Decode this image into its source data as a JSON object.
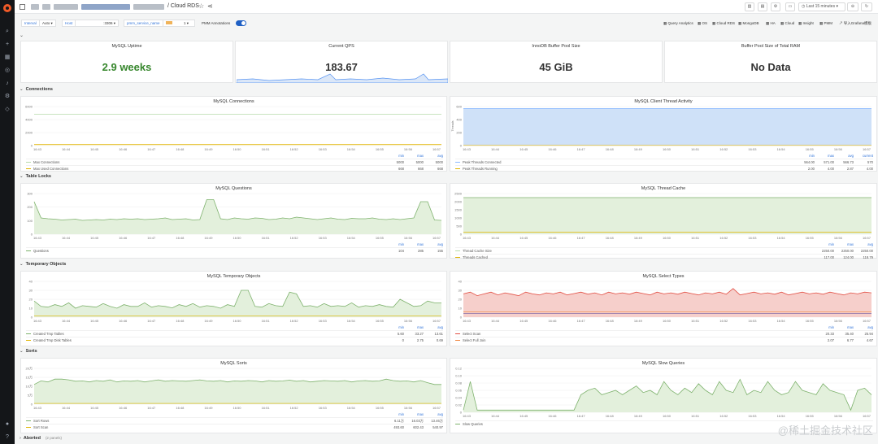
{
  "topbar": {
    "title": "/ Cloud RDS",
    "buttons": [
      "Last 15 minutes"
    ]
  },
  "variables": [
    {
      "label": "Interval",
      "value": "Auto"
    },
    {
      "label": "Host",
      "value": ":3306"
    },
    {
      "label": "pmm_service_name",
      "value": ""
    },
    {
      "label": "PMM Annotations",
      "value": ""
    }
  ],
  "navlinks": [
    "Query Analytics",
    "OS",
    "Cloud RDS",
    "MongoDB",
    "HA",
    "Cloud",
    "Insight",
    "PMM",
    "导入Grafana模板"
  ],
  "stats": [
    {
      "title": "MySQL Uptime",
      "value": "2.9 weeks",
      "color": "#37872d"
    },
    {
      "title": "Current QPS",
      "value": "183.67",
      "color": "#333333"
    },
    {
      "title": "InnoDB Buffer Pool Size",
      "value": "45 GiB",
      "color": "#333333"
    },
    {
      "title": "Buffer Pool Size of Total RAM",
      "value": "No Data",
      "color": "#333333"
    }
  ],
  "rows": [
    "Connections",
    "Table Locks",
    "Temporary Objects",
    "Sorts",
    "Aborted"
  ],
  "aborted_sub": "(2 panels)",
  "time_ticks": [
    "16:43",
    "16:44",
    "16:45",
    "16:46",
    "16:47",
    "16:48",
    "16:49",
    "16:50",
    "16:51",
    "16:52",
    "16:53",
    "16:54",
    "16:55",
    "16:56",
    "16:57"
  ],
  "legend_headers": [
    "min",
    "max",
    "avg"
  ],
  "legend_headers_current": [
    "min",
    "max",
    "avg",
    "current"
  ],
  "panels": {
    "connections": {
      "title": "MySQL Connections",
      "yticks": [
        "6000",
        "4000",
        "2000",
        "0"
      ],
      "legend": [
        {
          "name": "Max Connections",
          "color": "#b7dbab",
          "vals": [
            "5000",
            "5000",
            "5000"
          ]
        },
        {
          "name": "Max Used Connections",
          "color": "#e0b400",
          "vals": [
            "668",
            "668",
            "668"
          ]
        }
      ]
    },
    "threads": {
      "title": "MySQL Client Thread Activity",
      "ylabel": "Threads",
      "yticks": [
        "600",
        "400",
        "200",
        "0"
      ],
      "legend": [
        {
          "name": "Peak Threads Connected",
          "color": "#8ab8ff",
          "vals": [
            "564.00",
            "571.00",
            "566.73",
            "570"
          ]
        },
        {
          "name": "Peak Threads Running",
          "color": "#e0b400",
          "vals": [
            "2.00",
            "4.00",
            "2.87",
            "4.00"
          ]
        }
      ]
    },
    "questions": {
      "title": "MySQL Questions",
      "yticks": [
        "300",
        "200",
        "100",
        "0"
      ],
      "legend": [
        {
          "name": "Questions",
          "color": "#7eb26d",
          "vals": [
            "104",
            "285",
            "155"
          ]
        }
      ]
    },
    "threadcache": {
      "title": "MySQL Thread Cache",
      "yticks": [
        "2500",
        "2000",
        "1500",
        "1000",
        "500",
        "0"
      ],
      "legend": [
        {
          "name": "Thread Cache Size",
          "color": "#b7dbab",
          "vals": [
            "2250.00",
            "2250.00",
            "2250.00"
          ]
        },
        {
          "name": "Threads Cached",
          "color": "#e0b400",
          "vals": [
            "117.00",
            "124.00",
            "118.79"
          ]
        }
      ]
    },
    "tempobjects": {
      "title": "MySQL Temporary Objects",
      "yticks": [
        "40",
        "30",
        "20",
        "10",
        "0"
      ],
      "legend": [
        {
          "name": "Created Tmp Tables",
          "color": "#7eb26d",
          "vals": [
            "5.60",
            "33.27",
            "13.61"
          ]
        },
        {
          "name": "Created Tmp Disk Tables",
          "color": "#e0b400",
          "vals": [
            "0",
            "2.75",
            "0.69"
          ]
        }
      ]
    },
    "selecttypes": {
      "title": "MySQL Select Types",
      "yticks": [
        "40",
        "30",
        "20",
        "10",
        "0"
      ],
      "legend": [
        {
          "name": "Select Scan",
          "color": "#e24d42",
          "vals": [
            "20.33",
            "35.40",
            "25.94"
          ]
        },
        {
          "name": "Select Full Join",
          "color": "#ef843c",
          "vals": [
            "2.07",
            "6.77",
            "4.67"
          ]
        }
      ]
    },
    "sorts": {
      "title": "MySQL Sorts",
      "yticks": [
        "20万",
        "15万",
        "10万",
        "5万",
        "0"
      ],
      "legend": [
        {
          "name": "Sort Rows",
          "color": "#7eb26d",
          "vals": [
            "6.11万",
            "16.03万",
            "13.46万"
          ]
        },
        {
          "name": "Sort Scan",
          "color": "#e0b400",
          "vals": [
            "493.60",
            "602.43",
            "540.97"
          ]
        }
      ]
    },
    "slowqueries": {
      "title": "MySQL Slow Queries",
      "yticks": [
        "0.12",
        "0.10",
        "0.08",
        "0.06",
        "0.04",
        "0.02",
        "0"
      ],
      "legend": [
        {
          "name": "Slow Queries",
          "color": "#7eb26d",
          "vals": []
        }
      ]
    }
  },
  "watermark": "@稀土掘金技术社区"
}
